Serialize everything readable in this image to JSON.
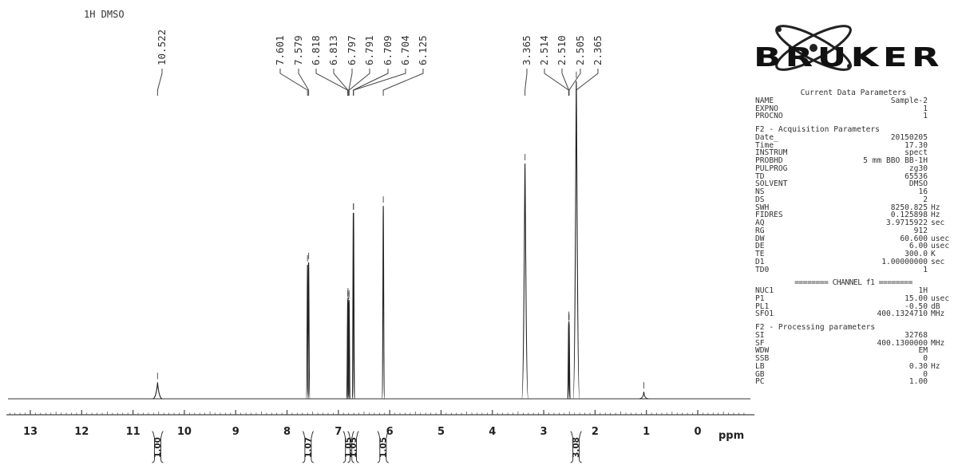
{
  "chart_data": {
    "type": "line",
    "title": "1H DMSO",
    "xlabel": "ppm",
    "xlim": [
      13.5,
      -0.9
    ],
    "x_ticks": [
      "13",
      "12",
      "11",
      "10",
      "9",
      "8",
      "7",
      "6",
      "5",
      "4",
      "3",
      "2",
      "1",
      "0"
    ],
    "peaks": [
      {
        "ppm": 10.522,
        "height": 0.07
      },
      {
        "ppm": 7.601,
        "height": 0.57
      },
      {
        "ppm": 7.579,
        "height": 0.58
      },
      {
        "ppm": 6.818,
        "height": 0.42
      },
      {
        "ppm": 6.813,
        "height": 0.43
      },
      {
        "ppm": 6.797,
        "height": 0.41
      },
      {
        "ppm": 6.791,
        "height": 0.42
      },
      {
        "ppm": 6.709,
        "height": 0.79
      },
      {
        "ppm": 6.704,
        "height": 0.79
      },
      {
        "ppm": 6.125,
        "height": 0.82
      },
      {
        "ppm": 3.365,
        "height": 1.0
      },
      {
        "ppm": 2.514,
        "height": 0.32
      },
      {
        "ppm": 2.51,
        "height": 0.33
      },
      {
        "ppm": 2.505,
        "height": 0.32
      },
      {
        "ppm": 2.365,
        "height": 1.35
      },
      {
        "ppm": 1.05,
        "height": 0.03
      }
    ],
    "peak_labels": [
      "10.522",
      "7.601",
      "7.579",
      "6.818",
      "6.813",
      "6.797",
      "6.791",
      "6.709",
      "6.704",
      "6.125",
      "3.365",
      "2.514",
      "2.510",
      "2.505",
      "2.365"
    ],
    "integrals": [
      {
        "ppm": 10.52,
        "value": "1.00"
      },
      {
        "ppm": 7.59,
        "value": "1.07"
      },
      {
        "ppm": 6.8,
        "value": "1.05"
      },
      {
        "ppm": 6.71,
        "value": "1.05"
      },
      {
        "ppm": 6.13,
        "value": "1.05"
      },
      {
        "ppm": 2.37,
        "value": "3.08"
      }
    ]
  },
  "logo_text": "BRUKER",
  "params": {
    "current": {
      "header": "Current Data Parameters",
      "rows": [
        {
          "k": "NAME",
          "v": "Sample-2",
          "u": ""
        },
        {
          "k": "EXPNO",
          "v": "1",
          "u": ""
        },
        {
          "k": "PROCNO",
          "v": "1",
          "u": ""
        }
      ]
    },
    "acquisition": {
      "header": "F2 - Acquisition Parameters",
      "rows": [
        {
          "k": "Date_",
          "v": "20150205",
          "u": ""
        },
        {
          "k": "Time",
          "v": "17.30",
          "u": ""
        },
        {
          "k": "INSTRUM",
          "v": "spect",
          "u": ""
        },
        {
          "k": "PROBHD",
          "v": "5 mm BBO BB-1H",
          "u": ""
        },
        {
          "k": "PULPROG",
          "v": "zg30",
          "u": ""
        },
        {
          "k": "TD",
          "v": "65536",
          "u": ""
        },
        {
          "k": "SOLVENT",
          "v": "DMSO",
          "u": ""
        },
        {
          "k": "NS",
          "v": "16",
          "u": ""
        },
        {
          "k": "DS",
          "v": "2",
          "u": ""
        },
        {
          "k": "SWH",
          "v": "8250.825",
          "u": "Hz"
        },
        {
          "k": "FIDRES",
          "v": "0.125898",
          "u": "Hz"
        },
        {
          "k": "AQ",
          "v": "3.9715922",
          "u": "sec"
        },
        {
          "k": "RG",
          "v": "912",
          "u": ""
        },
        {
          "k": "DW",
          "v": "60.600",
          "u": "usec"
        },
        {
          "k": "DE",
          "v": "6.00",
          "u": "usec"
        },
        {
          "k": "TE",
          "v": "300.0",
          "u": "K"
        },
        {
          "k": "D1",
          "v": "1.00000000",
          "u": "sec"
        },
        {
          "k": "TD0",
          "v": "1",
          "u": ""
        }
      ]
    },
    "channel": {
      "header": "======== CHANNEL f1 ========",
      "rows": [
        {
          "k": "NUC1",
          "v": "1H",
          "u": ""
        },
        {
          "k": "P1",
          "v": "15.00",
          "u": "usec"
        },
        {
          "k": "PL1",
          "v": "-0.50",
          "u": "dB"
        },
        {
          "k": "SFO1",
          "v": "400.1324710",
          "u": "MHz"
        }
      ]
    },
    "processing": {
      "header": "F2 - Processing parameters",
      "rows": [
        {
          "k": "SI",
          "v": "32768",
          "u": ""
        },
        {
          "k": "SF",
          "v": "400.1300000",
          "u": "MHz"
        },
        {
          "k": "WDW",
          "v": "EM",
          "u": ""
        },
        {
          "k": "SSB",
          "v": "0",
          "u": ""
        },
        {
          "k": "LB",
          "v": "0.30",
          "u": "Hz"
        },
        {
          "k": "GB",
          "v": "0",
          "u": ""
        },
        {
          "k": "PC",
          "v": "1.00",
          "u": ""
        }
      ]
    }
  }
}
